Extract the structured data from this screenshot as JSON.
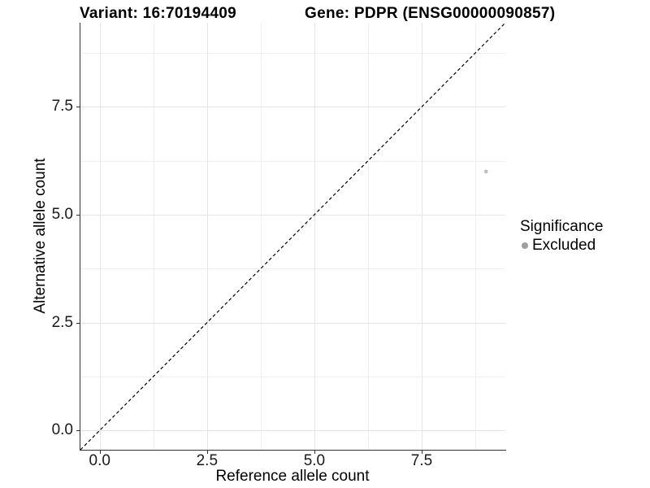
{
  "colors": {
    "background": "#ffffff",
    "axis_line": "#333333",
    "grid_major": "#e5e5e5",
    "grid_minor": "#f0f0f0",
    "tick_label": "#1a1a1a",
    "reference_line": "#000000",
    "point_fill": "#bfbfbf",
    "legend_marker": "#9e9e9e"
  },
  "chart_data": {
    "type": "scatter",
    "titles": {
      "left": "Variant: 16:70194409",
      "right": "Gene: PDPR (ENSG00000090857)"
    },
    "xlabel": "Reference allele count",
    "ylabel": "Alternative allele count",
    "xlim": [
      -0.45,
      9.45
    ],
    "ylim": [
      -0.45,
      9.45
    ],
    "x_major_ticks": [
      0,
      2.5,
      5,
      7.5
    ],
    "x_tick_labels": [
      "0.0",
      "2.5",
      "5.0",
      "7.5"
    ],
    "x_minor_ticks": [
      1.25,
      3.75,
      6.25,
      8.75
    ],
    "y_major_ticks": [
      0,
      2.5,
      5,
      7.5
    ],
    "y_tick_labels": [
      "0.0",
      "2.5",
      "5.0",
      "7.5"
    ],
    "y_minor_ticks": [
      1.25,
      3.75,
      6.25,
      8.75
    ],
    "grid": "major+minor",
    "reference_line": {
      "kind": "identity y=x",
      "slope": 1,
      "intercept": 0,
      "style": "dashed",
      "color": "#000000"
    },
    "series": [
      {
        "name": "Excluded",
        "color": "#bfbfbf",
        "points": [
          {
            "x": 9,
            "y": 6
          }
        ]
      }
    ],
    "legend": {
      "title": "Significance",
      "position": "right",
      "entries": [
        {
          "label": "Excluded",
          "marker": "circle",
          "color": "#9e9e9e"
        }
      ]
    }
  }
}
